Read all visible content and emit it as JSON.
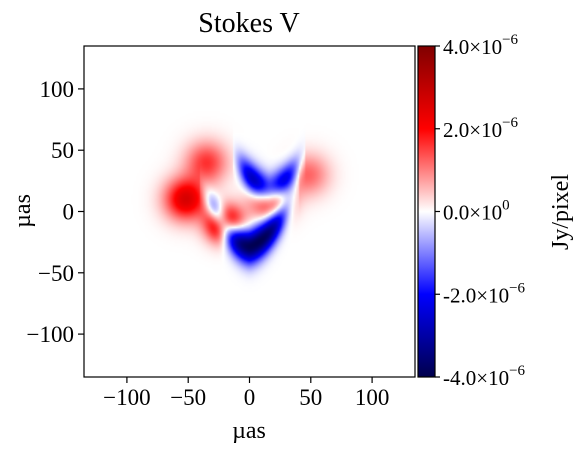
{
  "chart_data": {
    "type": "heatmap",
    "title": "Stokes V",
    "xlabel": "µas",
    "ylabel": "µas",
    "xlim": [
      -135,
      135
    ],
    "ylim": [
      -135,
      135
    ],
    "xticks": [
      -100,
      -50,
      0,
      50,
      100
    ],
    "yticks": [
      -100,
      -50,
      0,
      50,
      100
    ],
    "xtick_labels": [
      "−100",
      "−50",
      "0",
      "50",
      "100"
    ],
    "ytick_labels": [
      "−100",
      "−50",
      "0",
      "50",
      "100"
    ],
    "grid": false,
    "colormap": "seismic",
    "colormap_colors": [
      "#00004c",
      "#0000ff",
      "#ffffff",
      "#ff0000",
      "#800000"
    ],
    "colorbar": {
      "label": "Jy/pixel",
      "range": [
        -4e-06,
        4e-06
      ],
      "ticks": [
        {
          "value": 4e-06,
          "mant": "4.0×10",
          "exp": "−6"
        },
        {
          "value": 2e-06,
          "mant": "2.0×10",
          "exp": "−6"
        },
        {
          "value": 0,
          "mant": "0.0×10",
          "exp": "0"
        },
        {
          "value": -2e-06,
          "mant": "-2.0×10",
          "exp": "−6"
        },
        {
          "value": -4e-06,
          "mant": "-4.0×10",
          "exp": "−6"
        }
      ]
    },
    "features": [
      {
        "kind": "arc",
        "x": [
          -35,
          35
        ],
        "y": [
          -28,
          10
        ],
        "peak": -4e-06,
        "width": 10
      },
      {
        "kind": "arc",
        "x": [
          -10,
          42
        ],
        "y": [
          18,
          40
        ],
        "peak": -3.4e-06,
        "width": 9
      },
      {
        "kind": "blob",
        "x": -20,
        "y": -10,
        "peak": 4e-06,
        "width": 10
      },
      {
        "kind": "blob",
        "x": -52,
        "y": 10,
        "peak": 2.6e-06,
        "width": 12
      },
      {
        "kind": "blob",
        "x": 18,
        "y": 10,
        "peak": 2.8e-06,
        "width": 11
      },
      {
        "kind": "blob",
        "x": -35,
        "y": 40,
        "peak": 1.6e-06,
        "width": 12
      },
      {
        "kind": "blob",
        "x": 48,
        "y": 30,
        "peak": 1.2e-06,
        "width": 12
      }
    ]
  }
}
